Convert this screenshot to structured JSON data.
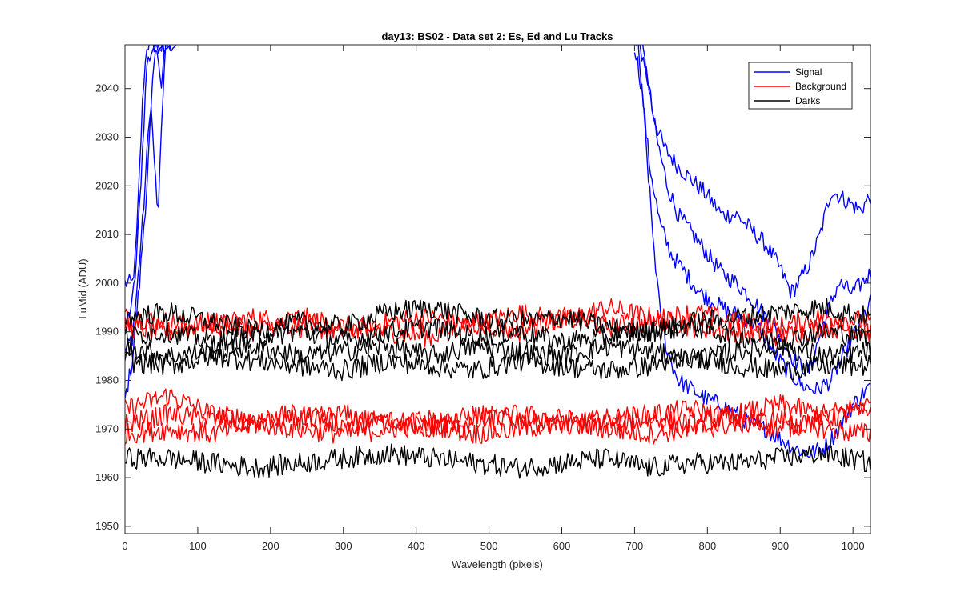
{
  "chart_data": {
    "type": "line",
    "title": "day13: BS02 - Data set 2: Es, Ed and Lu Tracks",
    "xlabel": "Wavelength (pixels)",
    "ylabel": "LuMid (ADU)",
    "xlim": [
      0,
      1024
    ],
    "ylim": [
      1948.5,
      2049
    ],
    "xticks": [
      0,
      100,
      200,
      300,
      400,
      500,
      600,
      700,
      800,
      900,
      1000
    ],
    "yticks": [
      1950,
      1960,
      1970,
      1980,
      1990,
      2000,
      2010,
      2020,
      2030,
      2040
    ],
    "grid": false,
    "legend": {
      "location": "top-right",
      "entries": [
        "Signal",
        "Background",
        "Darks"
      ]
    },
    "colors": {
      "Signal": "#0000ff",
      "Background": "#ff0000",
      "Darks": "#000000"
    },
    "series": [
      {
        "name": "Signal",
        "color": "#0000ff",
        "x": [
          0,
          10,
          15,
          20,
          25,
          30,
          35,
          40,
          50,
          60,
          70
        ],
        "y": [
          2000,
          2000,
          2006,
          2023,
          2040,
          2049,
          2049,
          2049,
          2049,
          2049,
          2049
        ]
      },
      {
        "name": "Signal",
        "color": "#0000ff",
        "x": [
          0,
          10,
          15,
          20,
          25,
          30,
          40,
          45,
          55,
          65
        ],
        "y": [
          1991,
          1996,
          2003,
          2016,
          2030,
          2045,
          2049,
          2049,
          2049,
          2049
        ]
      },
      {
        "name": "Signal",
        "color": "#0000ff",
        "x": [
          0,
          10,
          15,
          20,
          25,
          30,
          35,
          40,
          45,
          50,
          55,
          60
        ],
        "y": [
          1986,
          1989,
          1996,
          2005,
          2014,
          2026,
          2038,
          2026,
          2013,
          2030,
          2049,
          2049
        ]
      },
      {
        "name": "Signal",
        "color": "#0000ff",
        "x": [
          0,
          10,
          15,
          20,
          25,
          30,
          35,
          40,
          45,
          50,
          55
        ],
        "y": [
          1976,
          1984,
          1992,
          2000,
          2010,
          2020,
          2033,
          2045,
          2049,
          2040,
          2049
        ]
      },
      {
        "name": "Signal",
        "color": "#0000ff",
        "x": [
          700,
          705,
          715,
          725,
          740,
          760,
          780,
          800,
          820,
          840,
          860,
          880,
          900,
          915,
          925,
          940,
          955,
          970,
          990,
          1010,
          1024
        ],
        "y": [
          2049,
          2049,
          2045,
          2035,
          2028,
          2024,
          2021,
          2018,
          2014,
          2014,
          2011,
          2008,
          2003,
          1998,
          2000,
          2004,
          2010,
          2019,
          2017,
          2015,
          2018
        ]
      },
      {
        "name": "Signal",
        "color": "#0000ff",
        "x": [
          710,
          720,
          730,
          745,
          760,
          780,
          800,
          820,
          840,
          860,
          880,
          900,
          920,
          940,
          960,
          980,
          1000,
          1024
        ],
        "y": [
          2049,
          2040,
          2030,
          2020,
          2014,
          2010,
          2006,
          2002,
          2000,
          1997,
          1993,
          1989,
          1984,
          1982,
          1992,
          2000,
          1998,
          2002
        ]
      },
      {
        "name": "Signal",
        "color": "#0000ff",
        "x": [
          700,
          710,
          720,
          735,
          750,
          770,
          790,
          810,
          830,
          850,
          870,
          890,
          910,
          930,
          950,
          970,
          990,
          1010,
          1024
        ],
        "y": [
          2049,
          2040,
          2025,
          2012,
          2006,
          2002,
          1998,
          1996,
          1994,
          1993,
          1991,
          1986,
          1982,
          1979,
          1978,
          1980,
          1986,
          1992,
          1996
        ]
      },
      {
        "name": "Signal",
        "color": "#0000ff",
        "x": [
          705,
          715,
          725,
          735,
          745,
          760,
          780,
          800,
          820,
          840,
          860,
          880,
          900,
          920,
          940,
          960,
          980,
          1000,
          1024
        ],
        "y": [
          2049,
          2030,
          2010,
          1994,
          1986,
          1980,
          1978,
          1976,
          1975,
          1973,
          1971,
          1970,
          1968,
          1966,
          1965,
          1966,
          1970,
          1975,
          1979
        ]
      },
      {
        "name": "Background",
        "color": "#ff0000",
        "x": [
          0,
          60,
          120,
          180,
          240,
          300,
          360,
          420,
          480,
          540,
          600,
          660,
          720,
          780,
          840,
          900,
          960,
          1024
        ],
        "y": [
          1993,
          1992,
          1991,
          1993,
          1991,
          1990,
          1992,
          1993,
          1991,
          1994,
          1992,
          1995,
          1993,
          1991,
          1990,
          1989,
          1991,
          1990
        ]
      },
      {
        "name": "Background",
        "color": "#ff0000",
        "x": [
          0,
          60,
          120,
          180,
          240,
          300,
          360,
          420,
          480,
          540,
          600,
          660,
          720,
          780,
          840,
          900,
          960,
          1024
        ],
        "y": [
          1991,
          1990,
          1992,
          1990,
          1993,
          1991,
          1990,
          1989,
          1992,
          1990,
          1993,
          1991,
          1992,
          1994,
          1992,
          1991,
          1993,
          1992
        ]
      },
      {
        "name": "Background",
        "color": "#ff0000",
        "x": [
          0,
          60,
          120,
          180,
          240,
          300,
          360,
          420,
          480,
          540,
          600,
          660,
          720,
          780,
          840,
          900,
          960,
          1024
        ],
        "y": [
          1974,
          1977,
          1973,
          1972,
          1973,
          1971,
          1972,
          1970,
          1973,
          1972,
          1971,
          1972,
          1973,
          1974,
          1972,
          1970,
          1972,
          1974
        ]
      },
      {
        "name": "Background",
        "color": "#ff0000",
        "x": [
          0,
          60,
          120,
          180,
          240,
          300,
          360,
          420,
          480,
          540,
          600,
          660,
          720,
          780,
          840,
          900,
          960,
          1024
        ],
        "y": [
          1971,
          1973,
          1972,
          1971,
          1972,
          1973,
          1971,
          1972,
          1971,
          1973,
          1972,
          1971,
          1972,
          1971,
          1973,
          1975,
          1973,
          1975
        ]
      },
      {
        "name": "Background",
        "color": "#ff0000",
        "x": [
          0,
          60,
          120,
          180,
          240,
          300,
          360,
          420,
          480,
          540,
          600,
          660,
          720,
          780,
          840,
          900,
          960,
          1024
        ],
        "y": [
          1969,
          1970,
          1969,
          1971,
          1970,
          1969,
          1970,
          1971,
          1969,
          1970,
          1971,
          1970,
          1969,
          1970,
          1971,
          1972,
          1970,
          1969
        ]
      },
      {
        "name": "Darks",
        "color": "#000000",
        "x": [
          0,
          60,
          120,
          180,
          240,
          300,
          360,
          420,
          480,
          540,
          600,
          660,
          720,
          780,
          840,
          900,
          960,
          1024
        ],
        "y": [
          1993,
          1994,
          1992,
          1990,
          1992,
          1991,
          1994,
          1995,
          1993,
          1992,
          1993,
          1991,
          1990,
          1992,
          1993,
          1994,
          1995,
          1993
        ]
      },
      {
        "name": "Darks",
        "color": "#000000",
        "x": [
          0,
          60,
          120,
          180,
          240,
          300,
          360,
          420,
          480,
          540,
          600,
          660,
          720,
          780,
          840,
          900,
          960,
          1024
        ],
        "y": [
          1989,
          1990,
          1988,
          1989,
          1990,
          1988,
          1990,
          1991,
          1989,
          1990,
          1988,
          1989,
          1990,
          1991,
          1989,
          1988,
          1990,
          1989
        ]
      },
      {
        "name": "Darks",
        "color": "#000000",
        "x": [
          0,
          60,
          120,
          180,
          240,
          300,
          360,
          420,
          480,
          540,
          600,
          660,
          720,
          780,
          840,
          900,
          960,
          1024
        ],
        "y": [
          1987,
          1985,
          1986,
          1987,
          1985,
          1986,
          1987,
          1985,
          1987,
          1986,
          1985,
          1987,
          1986,
          1984,
          1986,
          1987,
          1985,
          1986
        ]
      },
      {
        "name": "Darks",
        "color": "#000000",
        "x": [
          0,
          60,
          120,
          180,
          240,
          300,
          360,
          420,
          480,
          540,
          600,
          660,
          720,
          780,
          840,
          900,
          960,
          1024
        ],
        "y": [
          1984,
          1983,
          1985,
          1984,
          1983,
          1982,
          1984,
          1983,
          1982,
          1984,
          1983,
          1982,
          1983,
          1985,
          1983,
          1982,
          1983,
          1983
        ]
      },
      {
        "name": "Darks",
        "color": "#000000",
        "x": [
          0,
          60,
          120,
          180,
          240,
          300,
          360,
          420,
          480,
          540,
          600,
          660,
          720,
          780,
          840,
          900,
          960,
          1024
        ],
        "y": [
          1964,
          1964,
          1963,
          1962,
          1963,
          1964,
          1965,
          1964,
          1963,
          1962,
          1963,
          1964,
          1962,
          1963,
          1963,
          1964,
          1965,
          1963
        ]
      }
    ]
  }
}
